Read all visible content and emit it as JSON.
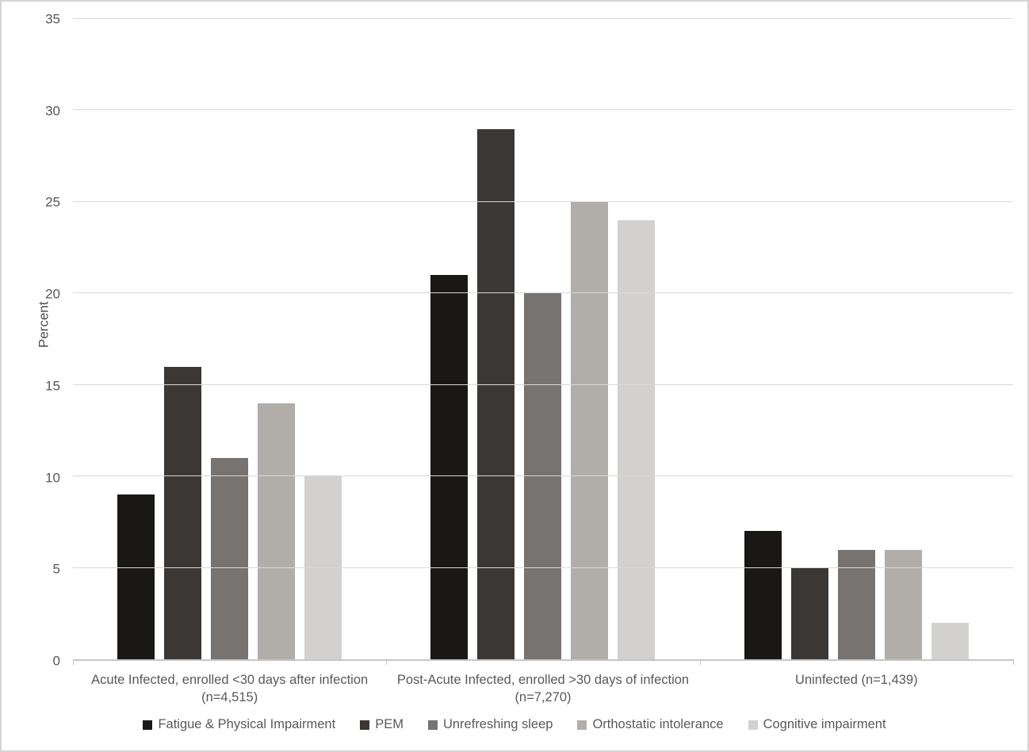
{
  "chart_data": {
    "type": "bar",
    "title": "",
    "xlabel": "",
    "ylabel": "Percent",
    "ylim": [
      0,
      35
    ],
    "yticks": [
      0,
      5,
      10,
      15,
      20,
      25,
      30,
      35
    ],
    "grid": true,
    "legend_position": "bottom",
    "categories": [
      {
        "label": "Acute Infected, enrolled <30 days after infection",
        "sub": "(n=4,515)"
      },
      {
        "label": "Post-Acute Infected, enrolled >30 days of infection",
        "sub": "(n=7,270)"
      },
      {
        "label": "Uninfected (n=1,439)",
        "sub": ""
      }
    ],
    "series": [
      {
        "name": "Fatigue & Physical Impairment",
        "color": "#1a1817",
        "values": [
          9,
          21,
          7
        ]
      },
      {
        "name": "PEM",
        "color": "#3a3735",
        "values": [
          16,
          29,
          5
        ]
      },
      {
        "name": "Unrefreshing sleep",
        "color": "#767371",
        "values": [
          11,
          20,
          6
        ]
      },
      {
        "name": "Orthostatic intolerance",
        "color": "#b1aeaa",
        "values": [
          14,
          25,
          6
        ]
      },
      {
        "name": "Cognitive impairment",
        "color": "#d3d1cf",
        "values": [
          10,
          24,
          2
        ]
      }
    ]
  }
}
